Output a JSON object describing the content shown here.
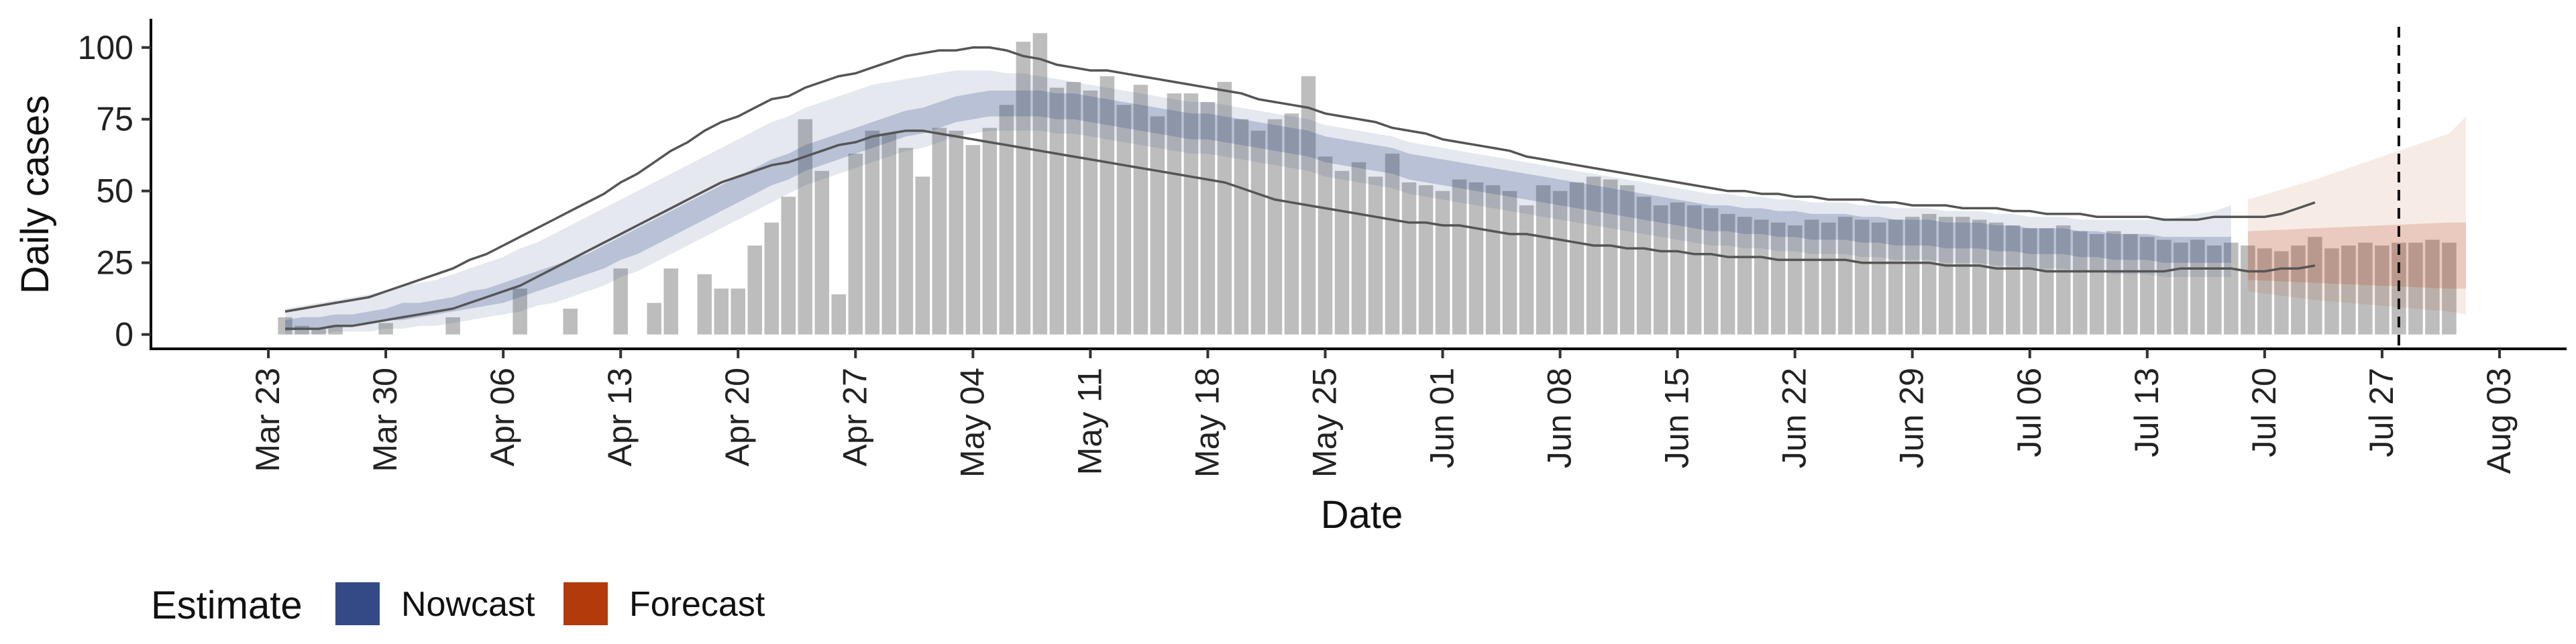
{
  "chart_data": {
    "type": "bar",
    "xlabel": "Date",
    "ylabel": "Daily cases",
    "ylim": [
      -5,
      110
    ],
    "xlim": [
      "2020-03-16",
      "2020-08-07"
    ],
    "y_ticks": [
      0,
      25,
      50,
      75,
      100
    ],
    "x_ticks": [
      "2020-03-23",
      "2020-03-30",
      "2020-04-06",
      "2020-04-13",
      "2020-04-20",
      "2020-04-27",
      "2020-05-04",
      "2020-05-11",
      "2020-05-18",
      "2020-05-25",
      "2020-06-01",
      "2020-06-08",
      "2020-06-15",
      "2020-06-22",
      "2020-06-29",
      "2020-07-06",
      "2020-07-13",
      "2020-07-20",
      "2020-07-27",
      "2020-08-03"
    ],
    "x_tick_labels": [
      "Mar 23",
      "Mar 30",
      "Apr 06",
      "Apr 13",
      "Apr 20",
      "Apr 27",
      "May 04",
      "May 11",
      "May 18",
      "May 25",
      "Jun 01",
      "Jun 08",
      "Jun 15",
      "Jun 22",
      "Jun 29",
      "Jul 06",
      "Jul 13",
      "Jul 20",
      "Jul 27",
      "Aug 03"
    ],
    "grid": false,
    "vline_date": "2020-07-28",
    "bars": {
      "start_date": "2020-03-24",
      "color": "#bdbdbd",
      "values": [
        6,
        3,
        2,
        3,
        0,
        0,
        4,
        0,
        0,
        0,
        6,
        0,
        0,
        0,
        16,
        0,
        0,
        9,
        0,
        0,
        23,
        0,
        11,
        23,
        0,
        21,
        16,
        16,
        31,
        39,
        48,
        75,
        57,
        14,
        63,
        71,
        70,
        65,
        55,
        72,
        71,
        66,
        72,
        80,
        102,
        105,
        86,
        88,
        85,
        90,
        80,
        87,
        76,
        84,
        84,
        81,
        88,
        75,
        71,
        75,
        77,
        90,
        62,
        57,
        60,
        55,
        63,
        53,
        52,
        50,
        54,
        53,
        52,
        50,
        45,
        52,
        50,
        53,
        55,
        54,
        52,
        48,
        45,
        46,
        45,
        44,
        42,
        41,
        40,
        39,
        38,
        40,
        39,
        41,
        40,
        39,
        40,
        41,
        42,
        41,
        41,
        40,
        39,
        38,
        37,
        37,
        38,
        36,
        35,
        36,
        35,
        34,
        33,
        32,
        33,
        31,
        32,
        31,
        30,
        29,
        31,
        34,
        30,
        31,
        32,
        31,
        32,
        32,
        33,
        32
      ]
    },
    "nowcast": {
      "name": "Nowcast",
      "color": "#344a86",
      "start_date": "2020-03-24",
      "median": [
        3,
        4,
        4,
        5,
        5,
        6,
        7,
        8,
        8,
        9,
        10,
        12,
        13,
        14,
        16,
        18,
        20,
        22,
        24,
        27,
        30,
        32,
        35,
        38,
        41,
        44,
        47,
        50,
        53,
        56,
        58,
        61,
        63,
        65,
        67,
        69,
        71,
        73,
        74,
        76,
        78,
        79,
        80,
        80,
        80,
        80,
        79,
        79,
        78,
        77,
        76,
        75,
        74,
        73,
        72,
        72,
        71,
        70,
        69,
        68,
        67,
        66,
        64,
        63,
        62,
        61,
        60,
        58,
        57,
        56,
        55,
        54,
        53,
        52,
        51,
        50,
        49,
        48,
        47,
        46,
        45,
        44,
        43,
        42,
        41,
        40,
        40,
        39,
        39,
        38,
        38,
        37,
        37,
        37,
        36,
        36,
        35,
        35,
        35,
        34,
        34,
        34,
        33,
        33,
        32,
        32,
        32,
        31,
        31,
        30,
        30,
        30,
        29,
        29,
        29,
        29,
        29
      ],
      "inner_lo": [
        1,
        2,
        2,
        3,
        3,
        4,
        5,
        5,
        6,
        7,
        8,
        9,
        10,
        11,
        13,
        15,
        17,
        19,
        21,
        23,
        26,
        28,
        31,
        34,
        37,
        40,
        43,
        46,
        49,
        52,
        54,
        57,
        59,
        61,
        63,
        65,
        67,
        69,
        70,
        72,
        74,
        75,
        76,
        76,
        76,
        76,
        75,
        75,
        74,
        73,
        72,
        71,
        70,
        69,
        68,
        68,
        67,
        66,
        65,
        64,
        63,
        62,
        60,
        59,
        58,
        57,
        56,
        54,
        53,
        52,
        51,
        50,
        49,
        48,
        47,
        46,
        45,
        44,
        43,
        42,
        41,
        40,
        39,
        38,
        37,
        36,
        36,
        35,
        35,
        34,
        34,
        33,
        33,
        33,
        32,
        32,
        31,
        31,
        31,
        30,
        30,
        30,
        29,
        29,
        28,
        28,
        28,
        27,
        27,
        26,
        26,
        26,
        25,
        25,
        25,
        25,
        25
      ],
      "inner_hi": [
        5,
        6,
        6,
        7,
        7,
        8,
        9,
        11,
        11,
        12,
        13,
        15,
        16,
        18,
        20,
        22,
        24,
        26,
        28,
        31,
        34,
        37,
        40,
        43,
        46,
        49,
        52,
        55,
        58,
        61,
        63,
        66,
        68,
        70,
        72,
        74,
        76,
        78,
        79,
        81,
        83,
        84,
        85,
        85,
        85,
        85,
        84,
        84,
        83,
        82,
        81,
        80,
        79,
        78,
        77,
        77,
        76,
        75,
        74,
        73,
        72,
        71,
        69,
        68,
        67,
        66,
        65,
        63,
        62,
        61,
        60,
        59,
        58,
        57,
        56,
        55,
        54,
        53,
        52,
        51,
        50,
        49,
        48,
        47,
        46,
        45,
        45,
        44,
        44,
        43,
        43,
        42,
        42,
        42,
        41,
        41,
        40,
        40,
        40,
        39,
        39,
        39,
        38,
        38,
        37,
        37,
        37,
        36,
        36,
        35,
        35,
        35,
        34,
        34,
        34,
        34,
        34
      ],
      "outer_lo": [
        0,
        0,
        0,
        1,
        1,
        1,
        2,
        2,
        3,
        3,
        4,
        5,
        6,
        7,
        8,
        10,
        11,
        13,
        15,
        17,
        20,
        22,
        25,
        28,
        31,
        34,
        37,
        40,
        43,
        46,
        49,
        52,
        54,
        56,
        58,
        60,
        62,
        64,
        65,
        67,
        69,
        70,
        71,
        71,
        71,
        71,
        70,
        70,
        69,
        68,
        67,
        66,
        65,
        64,
        63,
        63,
        62,
        61,
        60,
        59,
        58,
        57,
        55,
        54,
        53,
        52,
        51,
        49,
        48,
        47,
        46,
        45,
        44,
        43,
        42,
        41,
        40,
        39,
        38,
        37,
        36,
        35,
        34,
        33,
        32,
        31,
        31,
        30,
        30,
        29,
        29,
        28,
        28,
        28,
        27,
        27,
        26,
        26,
        26,
        25,
        25,
        25,
        24,
        24,
        23,
        23,
        23,
        22,
        22,
        21,
        21,
        21,
        20,
        20,
        20,
        20,
        20
      ],
      "outer_hi": [
        9,
        10,
        11,
        12,
        13,
        14,
        15,
        17,
        18,
        19,
        21,
        23,
        25,
        27,
        30,
        32,
        35,
        38,
        41,
        44,
        47,
        50,
        53,
        56,
        59,
        62,
        65,
        68,
        71,
        74,
        76,
        79,
        81,
        83,
        85,
        87,
        88,
        89,
        90,
        91,
        92,
        92,
        92,
        91,
        91,
        90,
        89,
        88,
        87,
        86,
        85,
        84,
        83,
        82,
        81,
        81,
        80,
        79,
        78,
        77,
        76,
        75,
        73,
        72,
        71,
        70,
        69,
        67,
        66,
        65,
        64,
        63,
        62,
        61,
        60,
        59,
        58,
        57,
        56,
        55,
        54,
        53,
        52,
        51,
        50,
        49,
        49,
        48,
        48,
        47,
        47,
        46,
        46,
        46,
        45,
        45,
        44,
        44,
        44,
        43,
        43,
        43,
        42,
        42,
        41,
        41,
        41,
        40,
        40,
        40,
        40,
        40,
        40,
        41,
        42,
        43,
        45
      ]
    },
    "forecast": {
      "name": "Forecast",
      "color": "#b33a0b",
      "dates": [
        "2020-07-19",
        "2020-07-23",
        "2020-07-27",
        "2020-07-31",
        "2020-08-01"
      ],
      "inner_lo": [
        19,
        18,
        17,
        16,
        16
      ],
      "inner_hi": [
        36,
        37,
        38,
        39,
        39
      ],
      "outer_lo": [
        15,
        12,
        10,
        8,
        7
      ],
      "outer_hi": [
        47,
        54,
        62,
        70,
        76
      ]
    },
    "envelope": {
      "color": "#555555",
      "start_date": "2020-03-24",
      "upper": [
        8,
        9,
        10,
        11,
        12,
        13,
        15,
        17,
        19,
        21,
        23,
        26,
        28,
        31,
        34,
        37,
        40,
        43,
        46,
        49,
        53,
        56,
        60,
        64,
        67,
        71,
        74,
        76,
        79,
        82,
        83,
        86,
        88,
        90,
        91,
        93,
        95,
        97,
        98,
        99,
        99,
        100,
        100,
        99,
        97,
        96,
        94,
        93,
        92,
        92,
        91,
        90,
        89,
        88,
        87,
        86,
        85,
        84,
        82,
        81,
        80,
        79,
        77,
        76,
        75,
        74,
        72,
        71,
        70,
        68,
        67,
        66,
        65,
        64,
        62,
        61,
        60,
        59,
        58,
        57,
        56,
        55,
        54,
        53,
        52,
        51,
        50,
        50,
        49,
        49,
        48,
        48,
        47,
        47,
        47,
        46,
        46,
        45,
        45,
        45,
        44,
        44,
        44,
        43,
        43,
        42,
        42,
        42,
        41,
        41,
        41,
        41,
        40,
        40,
        40,
        41,
        41,
        41,
        41,
        42,
        44,
        46
      ],
      "lower": [
        2,
        2,
        2,
        3,
        3,
        4,
        5,
        6,
        7,
        8,
        9,
        11,
        13,
        15,
        17,
        20,
        23,
        26,
        29,
        32,
        35,
        38,
        41,
        44,
        47,
        50,
        53,
        55,
        57,
        59,
        60,
        62,
        64,
        66,
        67,
        69,
        70,
        71,
        71,
        70,
        69,
        68,
        67,
        66,
        65,
        64,
        63,
        62,
        61,
        60,
        59,
        58,
        57,
        56,
        55,
        54,
        53,
        51,
        49,
        47,
        46,
        45,
        44,
        43,
        42,
        41,
        40,
        39,
        39,
        38,
        38,
        37,
        36,
        35,
        35,
        34,
        33,
        32,
        31,
        31,
        30,
        30,
        29,
        29,
        28,
        28,
        27,
        27,
        27,
        26,
        26,
        26,
        26,
        26,
        25,
        25,
        25,
        25,
        25,
        24,
        24,
        24,
        23,
        23,
        23,
        22,
        22,
        22,
        22,
        22,
        22,
        22,
        22,
        23,
        23,
        23,
        23,
        22,
        22,
        23,
        23,
        24
      ]
    }
  },
  "legend": {
    "title": "Estimate",
    "items": [
      {
        "label": "Nowcast",
        "color": "#344a86"
      },
      {
        "label": "Forecast",
        "color": "#b33a0b"
      }
    ]
  }
}
